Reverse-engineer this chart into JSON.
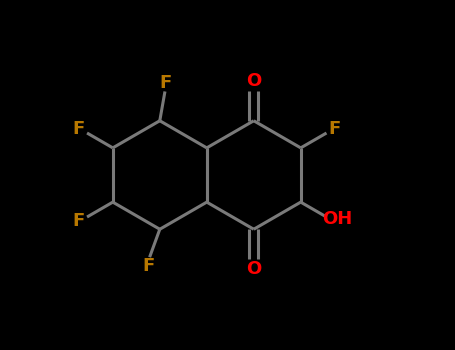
{
  "background_color": "#000000",
  "bond_color": "#7a7a7a",
  "bond_width": 2.2,
  "atom_colors": {
    "O": "#ff0000",
    "F": "#b87800",
    "OH": "#ff0000"
  },
  "figsize": [
    4.55,
    3.5
  ],
  "dpi": 100,
  "hex_r": 0.155,
  "rcx": 0.575,
  "rcy": 0.5
}
